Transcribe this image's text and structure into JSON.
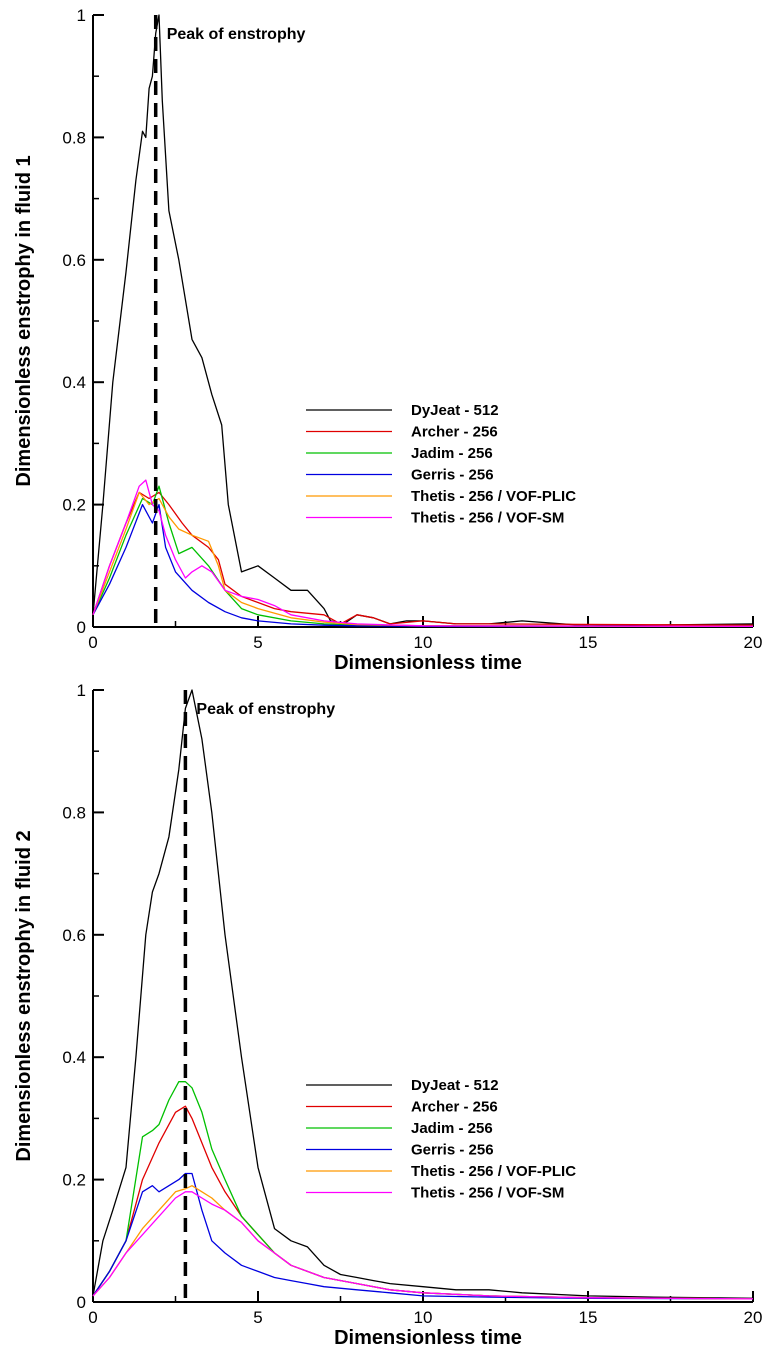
{
  "chart_data": [
    {
      "type": "line",
      "xlabel": "Dimensionless time",
      "ylabel": "Dimensionless enstrophy in fluid 1",
      "xlim": [
        0,
        20
      ],
      "ylim": [
        0,
        1
      ],
      "xticks": [
        0,
        5,
        10,
        15,
        20
      ],
      "yticks": [
        0,
        0.2,
        0.4,
        0.6,
        0.8,
        1
      ],
      "xtick_labels": [
        "0",
        "5",
        "10",
        "15",
        "20"
      ],
      "ytick_labels": [
        "0",
        "0.2",
        "0.4",
        "0.6",
        "0.8",
        "1"
      ],
      "grid": false,
      "legend_position": "center-right",
      "annotation": {
        "text": "Peak of enstrophy",
        "x": 1.9
      },
      "series": [
        {
          "name": "DyJeat - 512",
          "color": "#000000",
          "x": [
            0,
            0.3,
            0.6,
            1.0,
            1.3,
            1.5,
            1.6,
            1.7,
            1.8,
            1.9,
            2.0,
            2.1,
            2.3,
            2.6,
            3.0,
            3.3,
            3.6,
            3.9,
            4.1,
            4.5,
            5.0,
            5.5,
            6.0,
            6.5,
            7.0,
            7.2,
            7.6,
            8.0,
            8.5,
            9.0,
            9.5,
            10.0,
            11.0,
            12.0,
            13.0,
            15.0,
            20.0
          ],
          "y": [
            0.02,
            0.2,
            0.4,
            0.58,
            0.73,
            0.81,
            0.8,
            0.88,
            0.9,
            0.97,
            1.0,
            0.86,
            0.68,
            0.6,
            0.47,
            0.44,
            0.38,
            0.33,
            0.2,
            0.09,
            0.1,
            0.08,
            0.06,
            0.06,
            0.03,
            0.01,
            0.005,
            0.02,
            0.015,
            0.005,
            0.01,
            0.01,
            0.005,
            0.005,
            0.01,
            0.002,
            0.005
          ]
        },
        {
          "name": "Archer - 256",
          "color": "#e00000",
          "x": [
            0,
            0.5,
            1.0,
            1.4,
            1.7,
            2.0,
            2.3,
            2.7,
            3.0,
            3.5,
            3.8,
            4.0,
            4.5,
            5.0,
            5.5,
            6.0,
            7.0,
            7.5,
            8.0,
            8.5,
            9.0,
            10.0,
            11.0,
            12.0,
            20.0
          ],
          "y": [
            0.02,
            0.1,
            0.17,
            0.22,
            0.21,
            0.22,
            0.2,
            0.17,
            0.15,
            0.13,
            0.11,
            0.07,
            0.05,
            0.04,
            0.03,
            0.025,
            0.02,
            0.005,
            0.02,
            0.015,
            0.005,
            0.01,
            0.005,
            0.005,
            0.003
          ]
        },
        {
          "name": "Jadim - 256",
          "color": "#00c000",
          "x": [
            0,
            0.5,
            1.0,
            1.5,
            1.8,
            2.0,
            2.3,
            2.6,
            3.0,
            3.5,
            4.0,
            4.5,
            5.0,
            6.0,
            7.0,
            8.0,
            10.0,
            20.0
          ],
          "y": [
            0.02,
            0.08,
            0.15,
            0.21,
            0.2,
            0.23,
            0.17,
            0.12,
            0.13,
            0.1,
            0.06,
            0.03,
            0.02,
            0.01,
            0.005,
            0.003,
            0.002,
            0.001
          ]
        },
        {
          "name": "Gerris - 256",
          "color": "#0000e0",
          "x": [
            0,
            0.5,
            1.0,
            1.5,
            1.8,
            2.0,
            2.2,
            2.5,
            3.0,
            3.5,
            4.0,
            4.5,
            5.0,
            6.0,
            7.0,
            8.0,
            10.0,
            20.0
          ],
          "y": [
            0.02,
            0.07,
            0.13,
            0.2,
            0.17,
            0.2,
            0.13,
            0.09,
            0.06,
            0.04,
            0.025,
            0.015,
            0.01,
            0.005,
            0.003,
            0.002,
            0.001,
            0.001
          ]
        },
        {
          "name": "Thetis - 256 / VOF-PLIC",
          "color": "#ff9900",
          "x": [
            0,
            0.5,
            1.0,
            1.4,
            1.7,
            2.0,
            2.3,
            2.6,
            3.0,
            3.5,
            3.8,
            4.0,
            4.5,
            5.0,
            6.0,
            7.0,
            8.0,
            10.0,
            20.0
          ],
          "y": [
            0.02,
            0.09,
            0.16,
            0.22,
            0.2,
            0.21,
            0.18,
            0.16,
            0.15,
            0.14,
            0.1,
            0.06,
            0.04,
            0.03,
            0.015,
            0.008,
            0.004,
            0.002,
            0.001
          ]
        },
        {
          "name": "Thetis - 256 / VOF-SM",
          "color": "#ff00ff",
          "x": [
            0,
            0.5,
            1.0,
            1.4,
            1.6,
            1.8,
            2.0,
            2.2,
            2.5,
            2.8,
            3.0,
            3.3,
            3.6,
            4.0,
            4.5,
            5.0,
            5.5,
            6.0,
            7.0,
            8.0,
            10.0,
            20.0
          ],
          "y": [
            0.02,
            0.1,
            0.17,
            0.23,
            0.24,
            0.2,
            0.19,
            0.15,
            0.11,
            0.08,
            0.09,
            0.1,
            0.09,
            0.06,
            0.05,
            0.045,
            0.035,
            0.02,
            0.01,
            0.005,
            0.002,
            0.001
          ]
        }
      ]
    },
    {
      "type": "line",
      "xlabel": "Dimensionless time",
      "ylabel": "Dimensionless enstrophy in fluid 2",
      "xlim": [
        0,
        20
      ],
      "ylim": [
        0,
        1
      ],
      "xticks": [
        0,
        5,
        10,
        15,
        20
      ],
      "yticks": [
        0,
        0.2,
        0.4,
        0.6,
        0.8,
        1
      ],
      "xtick_labels": [
        "0",
        "5",
        "10",
        "15",
        "20"
      ],
      "ytick_labels": [
        "0",
        "0.2",
        "0.4",
        "0.6",
        "0.8",
        "1"
      ],
      "grid": false,
      "legend_position": "center-right",
      "annotation": {
        "text": "Peak of enstrophy",
        "x": 2.8
      },
      "series": [
        {
          "name": "DyJeat - 512",
          "color": "#000000",
          "x": [
            0,
            0.3,
            0.6,
            1.0,
            1.3,
            1.6,
            1.8,
            2.0,
            2.3,
            2.6,
            2.8,
            3.0,
            3.3,
            3.6,
            4.0,
            4.5,
            5.0,
            5.5,
            6.0,
            6.5,
            7.0,
            7.5,
            8.0,
            8.5,
            9.0,
            10.0,
            11.0,
            12.0,
            13.0,
            15.0,
            17.0,
            20.0
          ],
          "y": [
            0.01,
            0.1,
            0.15,
            0.22,
            0.4,
            0.6,
            0.67,
            0.7,
            0.76,
            0.87,
            0.97,
            1.0,
            0.92,
            0.8,
            0.6,
            0.4,
            0.22,
            0.12,
            0.1,
            0.09,
            0.06,
            0.045,
            0.04,
            0.035,
            0.03,
            0.025,
            0.02,
            0.02,
            0.015,
            0.01,
            0.008,
            0.006
          ]
        },
        {
          "name": "Archer - 256",
          "color": "#e00000",
          "x": [
            0,
            0.5,
            1.0,
            1.5,
            2.0,
            2.5,
            2.8,
            3.0,
            3.3,
            3.6,
            4.0,
            4.5,
            5.0,
            5.5,
            6.0,
            7.0,
            8.0,
            9.0,
            10.0,
            12.0,
            15.0,
            20.0
          ],
          "y": [
            0.01,
            0.05,
            0.1,
            0.2,
            0.26,
            0.31,
            0.32,
            0.3,
            0.26,
            0.22,
            0.18,
            0.14,
            0.11,
            0.08,
            0.06,
            0.04,
            0.03,
            0.02,
            0.015,
            0.01,
            0.007,
            0.005
          ]
        },
        {
          "name": "Jadim - 256",
          "color": "#00c000",
          "x": [
            0,
            0.5,
            1.0,
            1.5,
            1.8,
            2.0,
            2.3,
            2.6,
            2.8,
            3.0,
            3.3,
            3.6,
            4.0,
            4.5,
            5.0,
            5.5,
            6.0,
            7.0,
            8.0,
            9.0,
            10.0,
            12.0,
            15.0,
            20.0
          ],
          "y": [
            0.01,
            0.05,
            0.1,
            0.27,
            0.28,
            0.29,
            0.33,
            0.36,
            0.36,
            0.35,
            0.31,
            0.25,
            0.2,
            0.14,
            0.11,
            0.08,
            0.06,
            0.04,
            0.03,
            0.02,
            0.015,
            0.01,
            0.007,
            0.005
          ]
        },
        {
          "name": "Gerris - 256",
          "color": "#0000e0",
          "x": [
            0,
            0.5,
            1.0,
            1.5,
            1.8,
            2.0,
            2.3,
            2.6,
            2.8,
            3.0,
            3.3,
            3.6,
            4.0,
            4.5,
            5.0,
            5.5,
            6.0,
            6.5,
            7.0,
            8.0,
            9.0,
            10.0,
            12.0,
            15.0,
            20.0
          ],
          "y": [
            0.01,
            0.05,
            0.1,
            0.18,
            0.19,
            0.18,
            0.19,
            0.2,
            0.21,
            0.21,
            0.15,
            0.1,
            0.08,
            0.06,
            0.05,
            0.04,
            0.035,
            0.03,
            0.025,
            0.02,
            0.015,
            0.01,
            0.008,
            0.006,
            0.005
          ]
        },
        {
          "name": "Thetis - 256 / VOF-PLIC",
          "color": "#ff9900",
          "x": [
            0,
            0.5,
            1.0,
            1.5,
            2.0,
            2.5,
            2.8,
            3.0,
            3.3,
            3.6,
            4.0,
            4.5,
            5.0,
            5.5,
            6.0,
            7.0,
            8.0,
            9.0,
            10.0,
            12.0,
            15.0,
            20.0
          ],
          "y": [
            0.01,
            0.04,
            0.08,
            0.12,
            0.15,
            0.18,
            0.185,
            0.19,
            0.18,
            0.17,
            0.15,
            0.13,
            0.1,
            0.08,
            0.06,
            0.04,
            0.03,
            0.02,
            0.015,
            0.01,
            0.007,
            0.005
          ]
        },
        {
          "name": "Thetis - 256 / VOF-SM",
          "color": "#ff00ff",
          "x": [
            0,
            0.5,
            1.0,
            1.5,
            2.0,
            2.5,
            2.8,
            3.0,
            3.3,
            3.6,
            4.0,
            4.5,
            5.0,
            5.5,
            6.0,
            7.0,
            8.0,
            9.0,
            10.0,
            12.0,
            15.0,
            20.0
          ],
          "y": [
            0.01,
            0.04,
            0.08,
            0.11,
            0.14,
            0.17,
            0.18,
            0.18,
            0.17,
            0.16,
            0.15,
            0.13,
            0.1,
            0.08,
            0.06,
            0.04,
            0.03,
            0.02,
            0.015,
            0.01,
            0.007,
            0.005
          ]
        }
      ]
    }
  ]
}
